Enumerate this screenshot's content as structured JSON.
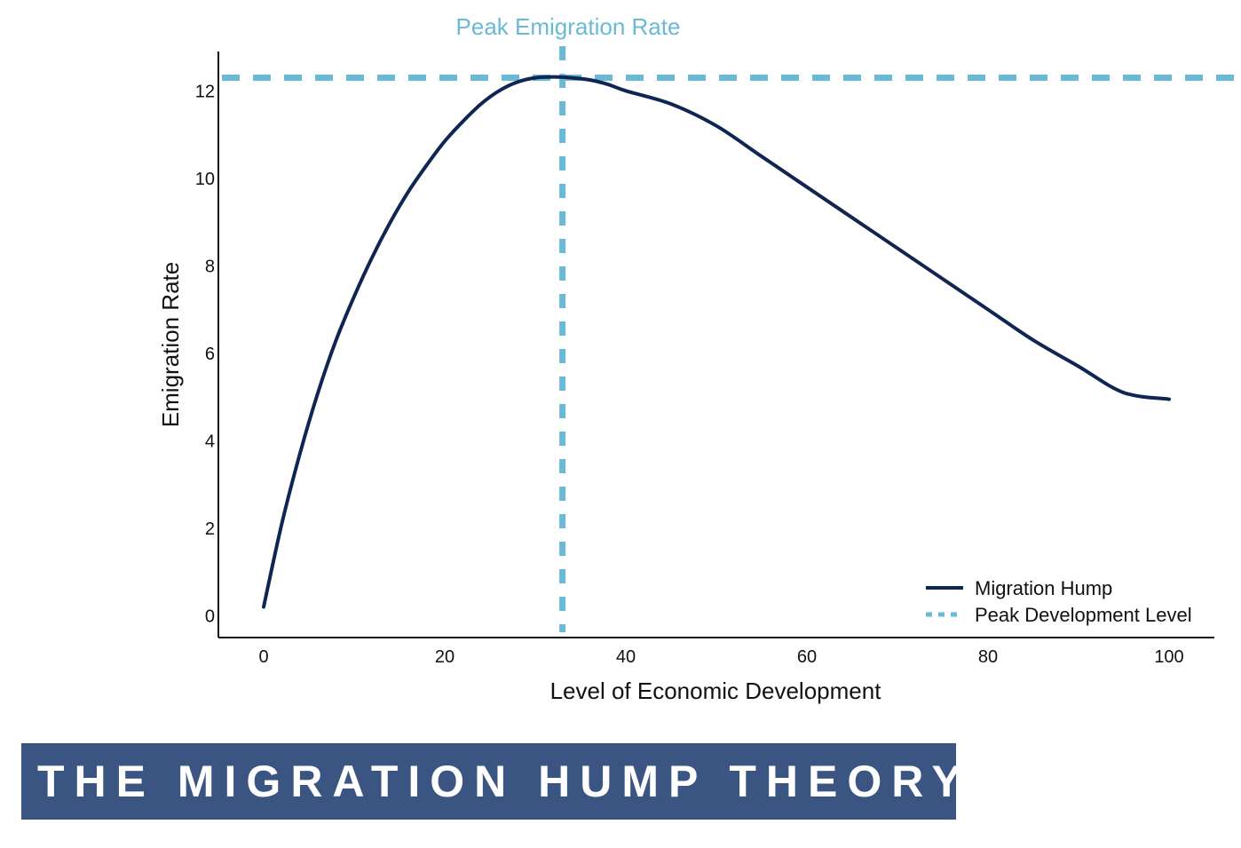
{
  "banner": {
    "text": "THE MIGRATION HUMP THEORY",
    "background": "#3b5583",
    "text_color": "#ffffff"
  },
  "colors": {
    "curve": "#0f2552",
    "reference": "#6ab9d6",
    "axis": "#111111"
  },
  "chart_data": {
    "type": "line",
    "xlabel": "Level of Economic Development",
    "ylabel": "Emigration Rate",
    "xlim": [
      -5,
      105
    ],
    "ylim": [
      -0.5,
      12.9
    ],
    "x_ticks": [
      "0",
      "20",
      "40",
      "60",
      "80",
      "100"
    ],
    "y_ticks": [
      "0",
      "2",
      "4",
      "6",
      "8",
      "10",
      "12"
    ],
    "grid": false,
    "legend_position": "bottom-right",
    "series": [
      {
        "name": "Migration Hump",
        "style": "solid",
        "x": [
          0,
          2,
          4,
          6,
          8,
          10,
          12,
          14,
          16,
          18,
          20,
          22,
          24,
          26,
          28,
          30,
          32,
          34,
          36,
          38,
          40,
          45,
          50,
          55,
          60,
          65,
          70,
          75,
          80,
          85,
          90,
          95,
          100
        ],
        "y": [
          0.2,
          2.1,
          3.7,
          5.1,
          6.3,
          7.3,
          8.2,
          9.0,
          9.7,
          10.3,
          10.85,
          11.3,
          11.7,
          12.0,
          12.2,
          12.3,
          12.32,
          12.3,
          12.25,
          12.15,
          12.0,
          11.7,
          11.2,
          10.5,
          9.8,
          9.1,
          8.4,
          7.7,
          7.0,
          6.3,
          5.7,
          5.1,
          4.95
        ]
      },
      {
        "name": "Peak Development Level",
        "style": "dotted",
        "vertical_x": 33
      }
    ],
    "annotations": [
      {
        "text": "Peak Emigration Rate",
        "type": "horizontal-line",
        "y": 12.3
      }
    ]
  }
}
